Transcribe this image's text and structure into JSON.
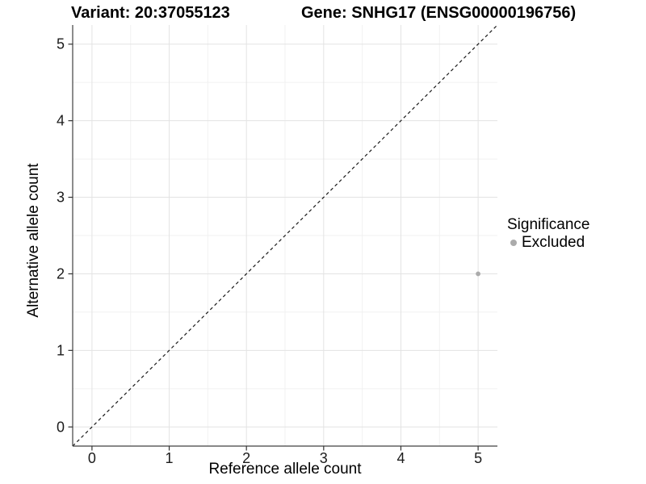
{
  "chart_data": {
    "type": "scatter",
    "title_left": "Variant: 20:37055123",
    "title_right": "Gene: SNHG17 (ENSG00000196756)",
    "xlabel": "Reference allele count",
    "ylabel": "Alternative allele count",
    "xlim": [
      -0.25,
      5.25
    ],
    "ylim": [
      -0.25,
      5.25
    ],
    "xticks": [
      0,
      1,
      2,
      3,
      4,
      5
    ],
    "yticks": [
      0,
      1,
      2,
      3,
      4,
      5
    ],
    "grid": true,
    "minor_grid_step": 0.5,
    "identity_line": {
      "style": "dashed",
      "equation": "y = x",
      "color": "#1a1a1a"
    },
    "series": [
      {
        "name": "Excluded",
        "color": "#ababab",
        "points": [
          {
            "x": 5,
            "y": 2
          }
        ]
      }
    ],
    "legend": {
      "position": "right",
      "title": "Significance",
      "entries": [
        {
          "label": "Excluded",
          "color": "#ababab"
        }
      ]
    }
  },
  "colors": {
    "background": "#ffffff",
    "grid_major": "#e3e3e3",
    "grid_minor": "#f1f1f1",
    "axis": "#404040",
    "tick": "#333333",
    "point": "#ababab",
    "text": "#000000"
  }
}
